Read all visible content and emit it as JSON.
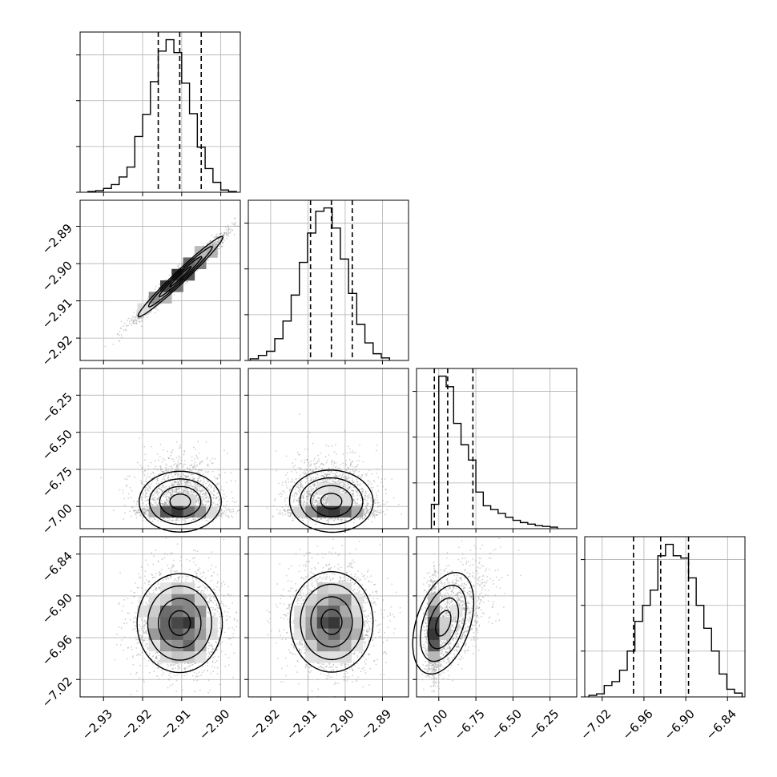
{
  "figure": {
    "type": "corner_plot",
    "grid": true,
    "background": "#ffffff"
  },
  "chart_data": {
    "type": "corner",
    "parameters": [
      {
        "range": [
          -2.936,
          -2.895
        ],
        "xticks": [
          "-2.93",
          "-2.92",
          "-2.91",
          "-2.90"
        ],
        "xtick_values": [
          -2.93,
          -2.92,
          -2.91,
          -2.9
        ],
        "quantiles": [
          -2.916,
          -2.9105,
          -2.905
        ],
        "hist_edges": [
          -2.934,
          -2.932,
          -2.93,
          -2.928,
          -2.926,
          -2.924,
          -2.922,
          -2.92,
          -2.918,
          -2.916,
          -2.914,
          -2.912,
          -2.91,
          -2.908,
          -2.906,
          -2.904,
          -2.902,
          -2.9,
          -2.898,
          -2.896
        ],
        "hist_counts": [
          1,
          2,
          5,
          10,
          20,
          33,
          73,
          102,
          145,
          185,
          200,
          183,
          143,
          103,
          59,
          31,
          13,
          3,
          1
        ]
      },
      {
        "range": [
          -2.926,
          -2.883
        ],
        "xticks": [
          "-2.92",
          "-2.91",
          "-2.90",
          "-2.89"
        ],
        "xtick_values": [
          -2.92,
          -2.91,
          -2.9,
          -2.89
        ],
        "yticks": [
          "-2.89",
          "-2.90",
          "-2.91",
          "-2.92"
        ],
        "ytick_values": [
          -2.89,
          -2.9,
          -2.91,
          -2.92
        ],
        "quantiles": [
          -2.9093,
          -2.9037,
          -2.8981
        ],
        "hist_edges": [
          -2.9255,
          -2.9233,
          -2.9211,
          -2.9189,
          -2.9167,
          -2.9145,
          -2.9123,
          -2.9101,
          -2.9079,
          -2.9057,
          -2.9035,
          -2.9013,
          -2.8991,
          -2.8969,
          -2.8947,
          -2.8925,
          -2.8903,
          -2.8881
        ],
        "hist_counts": [
          2,
          6,
          11,
          26,
          47,
          78,
          117,
          152,
          178,
          182,
          158,
          121,
          80,
          43,
          21,
          8,
          3
        ]
      },
      {
        "range": [
          -7.15,
          -6.07
        ],
        "xticks": [
          "-7.00",
          "-6.75",
          "-6.50",
          "-6.25"
        ],
        "xtick_values": [
          -7.0,
          -6.75,
          -6.5,
          -6.25
        ],
        "yticks": [
          "-6.25",
          "-6.50",
          "-6.75",
          "-7.00"
        ],
        "ytick_values": [
          -6.25,
          -6.5,
          -6.75,
          -7.0
        ],
        "quantiles": [
          -7.03,
          -6.94,
          -6.77
        ],
        "hist_edges": [
          -7.05,
          -7.0,
          -6.95,
          -6.9,
          -6.85,
          -6.8,
          -6.75,
          -6.7,
          -6.65,
          -6.6,
          -6.55,
          -6.5,
          -6.45,
          -6.4,
          -6.35,
          -6.3,
          -6.25,
          -6.2
        ],
        "hist_counts": [
          32,
          200,
          186,
          138,
          110,
          90,
          48,
          30,
          25,
          20,
          15,
          11,
          8,
          6,
          4,
          3,
          2
        ]
      },
      {
        "range": [
          -7.045,
          -6.815
        ],
        "xticks": [
          "-7.02",
          "-6.96",
          "-6.90",
          "-6.84"
        ],
        "xtick_values": [
          -7.02,
          -6.96,
          -6.9,
          -6.84
        ],
        "yticks": [
          "-6.84",
          "-6.90",
          "-6.96",
          "-7.02"
        ],
        "ytick_values": [
          -6.84,
          -6.9,
          -6.96,
          -7.02
        ],
        "quantiles": [
          -6.975,
          -6.936,
          -6.896
        ],
        "hist_edges": [
          -7.039,
          -7.028,
          -7.017,
          -7.006,
          -6.995,
          -6.984,
          -6.973,
          -6.962,
          -6.951,
          -6.94,
          -6.929,
          -6.918,
          -6.907,
          -6.896,
          -6.885,
          -6.874,
          -6.863,
          -6.852,
          -6.841,
          -6.83,
          -6.819
        ],
        "hist_counts": [
          2,
          4,
          15,
          20,
          35,
          60,
          99,
          120,
          140,
          185,
          200,
          185,
          182,
          156,
          120,
          90,
          60,
          30,
          10,
          5
        ]
      }
    ],
    "scatter_panels": [
      {
        "row": 1,
        "col": 0,
        "correlation": 0.98,
        "center": [
          -2.9105,
          -2.9037
        ]
      },
      {
        "row": 2,
        "col": 0,
        "shape": "skewed",
        "mode": [
          -2.914,
          -7.0
        ]
      },
      {
        "row": 2,
        "col": 1,
        "shape": "skewed",
        "mode": [
          -2.906,
          -7.0
        ]
      },
      {
        "row": 3,
        "col": 0,
        "correlation": 0.15,
        "mode": [
          -2.913,
          -6.92
        ]
      },
      {
        "row": 3,
        "col": 1,
        "correlation": 0.15,
        "mode": [
          -2.904,
          -6.92
        ]
      },
      {
        "row": 3,
        "col": 2,
        "correlation": 0.55,
        "mode": [
          -7.02,
          -6.91
        ]
      }
    ],
    "colors": {
      "line": "#000000",
      "points": "#9a9a9a",
      "grid": "#b0b0b0"
    }
  }
}
